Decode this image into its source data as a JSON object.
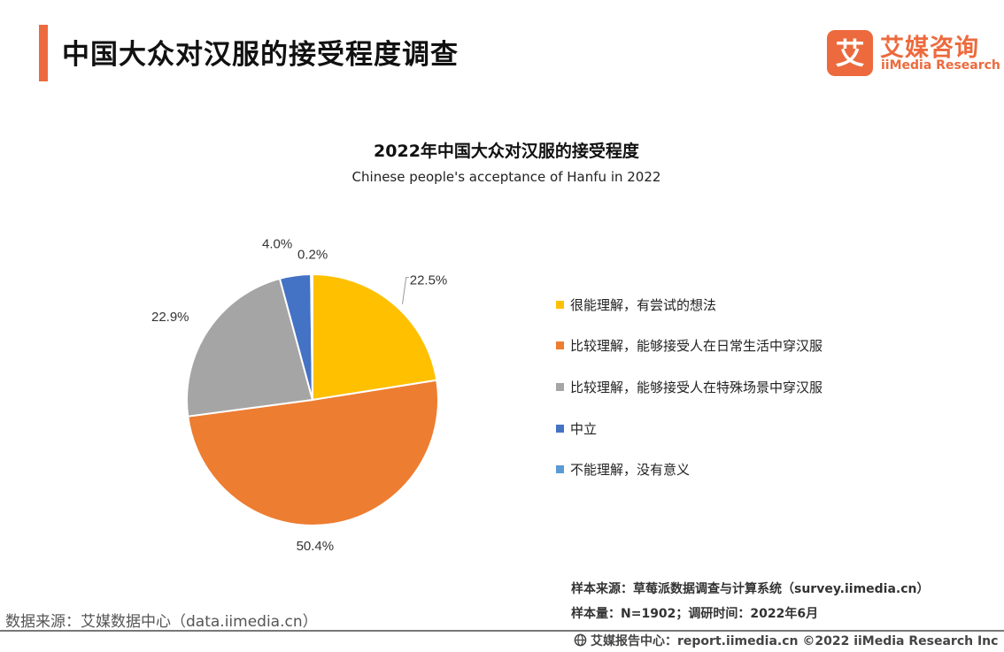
{
  "header": {
    "title": "中国大众对汉服的接受程度调查",
    "logo_cn": "艾媒咨询",
    "logo_en": "iiMedia Research",
    "logo_mark": "艾",
    "accent": "#ec6a3d"
  },
  "chart_data": {
    "type": "pie",
    "title": "2022年中国大众对汉服的接受程度",
    "subtitle": "Chinese people's acceptance of Hanfu in 2022",
    "legend_position": "right",
    "slices": [
      {
        "label": "很能理解，有尝试的想法",
        "value": 22.5,
        "display": "22.5%",
        "color": "#ffc000"
      },
      {
        "label": "比较理解，能够接受人在日常生活中穿汉服",
        "value": 50.4,
        "display": "50.4%",
        "color": "#ed7d31"
      },
      {
        "label": "比较理解，能够接受人在特殊场景中穿汉服",
        "value": 22.9,
        "display": "22.9%",
        "color": "#a5a5a5"
      },
      {
        "label": "中立",
        "value": 4.0,
        "display": "4.0%",
        "color": "#4472c4"
      },
      {
        "label": "不能理解，没有意义",
        "value": 0.2,
        "display": "0.2%",
        "color": "#5b9bd5"
      }
    ]
  },
  "footer": {
    "data_source": "数据来源：艾媒数据中心（data.iimedia.cn）",
    "sample_source": "样本来源：草莓派数据调查与计算系统（survey.iimedia.cn）",
    "sample_size": "样本量：N=1902；调研时间：2022年6月",
    "report_center": "艾媒报告中心：report.iimedia.cn   ©2022  iiMedia Research  Inc"
  }
}
